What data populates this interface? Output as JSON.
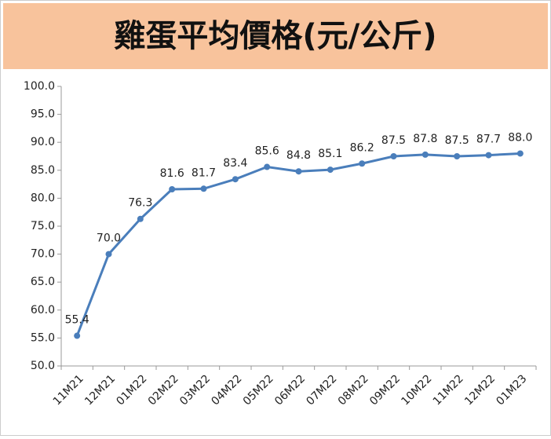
{
  "chart_data": {
    "type": "line",
    "title": "雞蛋平均價格(元/公斤)",
    "categories": [
      "11M21",
      "12M21",
      "01M22",
      "02M22",
      "03M22",
      "04M22",
      "05M22",
      "06M22",
      "07M22",
      "08M22",
      "09M22",
      "10M22",
      "11M22",
      "12M22",
      "01M23"
    ],
    "values": [
      55.4,
      70,
      76.3,
      81.6,
      81.7,
      83.4,
      85.6,
      84.8,
      85.1,
      86.2,
      87.5,
      87.8,
      87.5,
      87.7,
      88
    ],
    "value_labels": [
      "55.4",
      "70.0",
      "76.3",
      "81.6",
      "81.7",
      "83.4",
      "85.6",
      "84.8",
      "85.1",
      "86.2",
      "87.5",
      "87.8",
      "87.5",
      "87.7",
      "88.0"
    ],
    "color": "#4a7ebb",
    "ylim": [
      50,
      100
    ],
    "yticks": [
      {
        "value": 50,
        "label": "50.0"
      },
      {
        "value": 55,
        "label": "55.0"
      },
      {
        "value": 60,
        "label": "60.0"
      },
      {
        "value": 65,
        "label": "65.0"
      },
      {
        "value": 70,
        "label": "70.0"
      },
      {
        "value": 75,
        "label": "75.0"
      },
      {
        "value": 80,
        "label": "80.0"
      },
      {
        "value": 85,
        "label": "85.0"
      },
      {
        "value": 90,
        "label": "90.0"
      },
      {
        "value": 95,
        "label": "95.0"
      },
      {
        "value": 100,
        "label": "100.0"
      }
    ],
    "grid": false
  }
}
